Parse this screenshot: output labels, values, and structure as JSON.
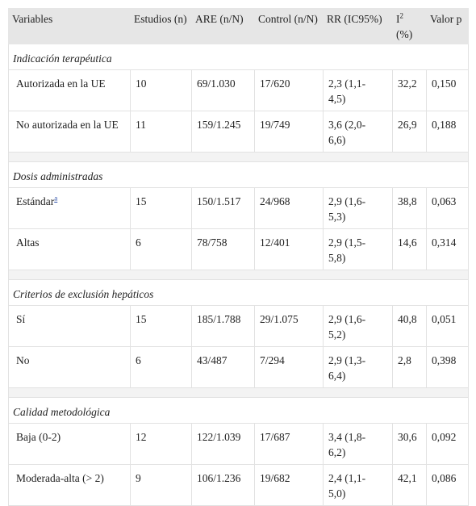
{
  "table": {
    "headers": [
      "Variables",
      "Estudios (n)",
      "ARE (n/N)",
      "Control (n/N)",
      "RR (IC95%)",
      {
        "base": "I",
        "sup": "2",
        "unit": "(%)"
      },
      "Valor p"
    ],
    "sections": [
      {
        "title": "Indicación terapéutica",
        "rows": [
          {
            "cells": [
              "Autorizada en la UE",
              "10",
              "69/1.030",
              "17/620",
              "2,3 (1,1-4,5)",
              "32,2",
              "0,150"
            ]
          },
          {
            "cells": [
              "No autorizada en la UE",
              "11",
              "159/1.245",
              "19/749",
              "3,6 (2,0-6,6)",
              "26,9",
              "0,188"
            ]
          }
        ]
      },
      {
        "title": "Dosis administradas",
        "rows": [
          {
            "cells": [
              "Estándar",
              "15",
              "150/1.517",
              "24/968",
              "2,9 (1,6-5,3)",
              "38,8",
              "0,063"
            ],
            "note": "a"
          },
          {
            "cells": [
              "Altas",
              "6",
              "78/758",
              "12/401",
              "2,9 (1,5-5,8)",
              "14,6",
              "0,314"
            ]
          }
        ]
      },
      {
        "title": "Criterios de exclusión hepáticos",
        "rows": [
          {
            "cells": [
              "Sí",
              "15",
              "185/1.788",
              "29/1.075",
              "2,9 (1,6-5,2)",
              "40,8",
              "0,051"
            ]
          },
          {
            "cells": [
              "No",
              "6",
              "43/487",
              "7/294",
              "2,9 (1,3-6,4)",
              "2,8",
              "0,398"
            ]
          }
        ]
      },
      {
        "title": "Calidad metodológica",
        "rows": [
          {
            "cells": [
              "Baja (0-2)",
              "12",
              "122/1.039",
              "17/687",
              "3,4 (1,8-6,2)",
              "30,6",
              "0,092"
            ]
          },
          {
            "cells": [
              "Moderada-alta (> 2)",
              "9",
              "106/1.236",
              "19/682",
              "2,4 (1,1-5,0)",
              "42,1",
              "0,086"
            ]
          }
        ]
      }
    ]
  }
}
